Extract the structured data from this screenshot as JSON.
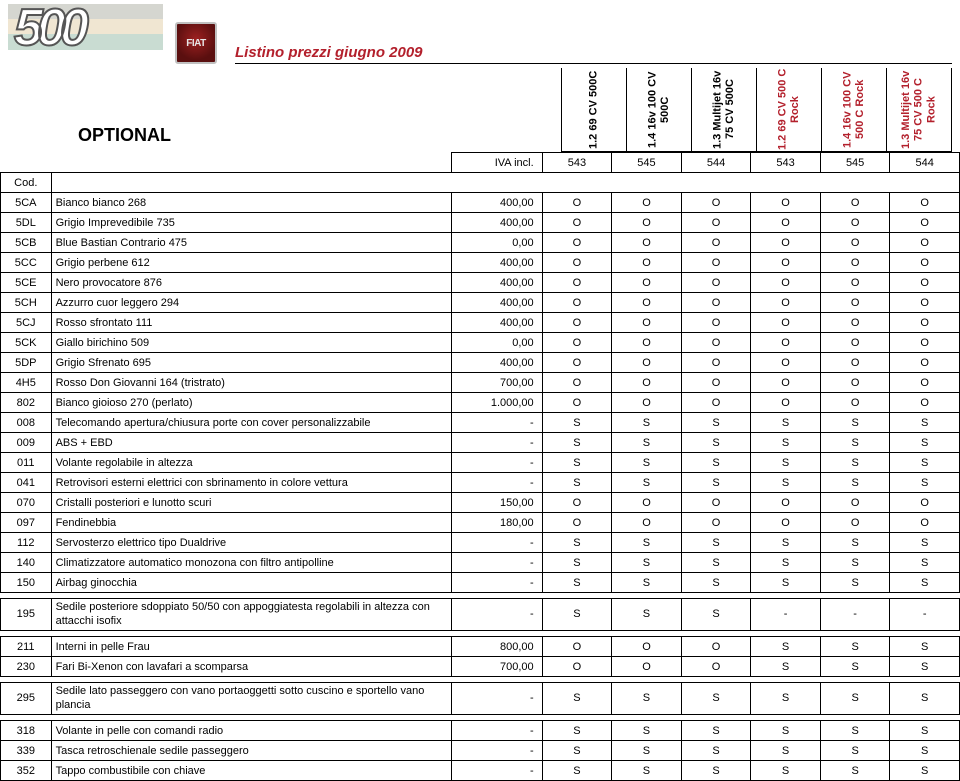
{
  "header": {
    "logo_text": "500",
    "brand_badge": "FIAT",
    "title": "Listino prezzi giugno 2009"
  },
  "section": {
    "label": "OPTIONAL",
    "iva_label": "IVA incl.",
    "cod_label": "Cod."
  },
  "variants": [
    {
      "name": "1.2 69 CV 500C",
      "code": "543",
      "rock": false
    },
    {
      "name": "1.4 16v 100 CV 500C",
      "code": "545",
      "rock": false
    },
    {
      "name": "1.3 Multijet 16v 75 CV 500C",
      "code": "544",
      "rock": false
    },
    {
      "name": "1.2 69 CV 500 C Rock",
      "code": "543",
      "rock": true
    },
    {
      "name": "1.4 16v 100 CV 500 C Rock",
      "code": "545",
      "rock": true
    },
    {
      "name": "1.3 Multijet 16v 75 CV 500 C Rock",
      "code": "544",
      "rock": true
    }
  ],
  "rows": [
    {
      "code": "5CA",
      "desc": "Bianco bianco 268",
      "price": "400,00",
      "v": [
        "O",
        "O",
        "O",
        "O",
        "O",
        "O"
      ]
    },
    {
      "code": "5DL",
      "desc": "Grigio Imprevedibile  735",
      "price": "400,00",
      "v": [
        "O",
        "O",
        "O",
        "O",
        "O",
        "O"
      ]
    },
    {
      "code": "5CB",
      "desc": "Blue Bastian Contrario 475",
      "price": "0,00",
      "v": [
        "O",
        "O",
        "O",
        "O",
        "O",
        "O"
      ]
    },
    {
      "code": "5CC",
      "desc": "Grigio perbene 612",
      "price": "400,00",
      "v": [
        "O",
        "O",
        "O",
        "O",
        "O",
        "O"
      ]
    },
    {
      "code": "5CE",
      "desc": "Nero provocatore 876",
      "price": "400,00",
      "v": [
        "O",
        "O",
        "O",
        "O",
        "O",
        "O"
      ]
    },
    {
      "code": "5CH",
      "desc": "Azzurro cuor leggero 294",
      "price": "400,00",
      "v": [
        "O",
        "O",
        "O",
        "O",
        "O",
        "O"
      ]
    },
    {
      "code": "5CJ",
      "desc": "Rosso sfrontato 111",
      "price": "400,00",
      "v": [
        "O",
        "O",
        "O",
        "O",
        "O",
        "O"
      ]
    },
    {
      "code": "5CK",
      "desc": "Giallo birichino 509",
      "price": "0,00",
      "v": [
        "O",
        "O",
        "O",
        "O",
        "O",
        "O"
      ]
    },
    {
      "code": "5DP",
      "desc": "Grigio Sfrenato 695",
      "price": "400,00",
      "v": [
        "O",
        "O",
        "O",
        "O",
        "O",
        "O"
      ]
    },
    {
      "code": "4H5",
      "desc": "Rosso Don Giovanni 164 (tristrato)",
      "price": "700,00",
      "v": [
        "O",
        "O",
        "O",
        "O",
        "O",
        "O"
      ]
    },
    {
      "code": "802",
      "desc": "Bianco gioioso 270 (perlato)",
      "price": "1.000,00",
      "v": [
        "O",
        "O",
        "O",
        "O",
        "O",
        "O"
      ]
    },
    {
      "code": "008",
      "desc": "Telecomando apertura/chiusura porte con cover personalizzabile",
      "price": "-",
      "v": [
        "S",
        "S",
        "S",
        "S",
        "S",
        "S"
      ]
    },
    {
      "code": "009",
      "desc": "ABS + EBD",
      "price": "-",
      "v": [
        "S",
        "S",
        "S",
        "S",
        "S",
        "S"
      ]
    },
    {
      "code": "011",
      "desc": "Volante regolabile in altezza",
      "price": "-",
      "v": [
        "S",
        "S",
        "S",
        "S",
        "S",
        "S"
      ]
    },
    {
      "code": "041",
      "desc": "Retrovisori esterni elettrici con sbrinamento in colore vettura",
      "price": "-",
      "v": [
        "S",
        "S",
        "S",
        "S",
        "S",
        "S"
      ]
    },
    {
      "code": "070",
      "desc": "Cristalli posteriori e lunotto scuri",
      "price": "150,00",
      "v": [
        "O",
        "O",
        "O",
        "O",
        "O",
        "O"
      ]
    },
    {
      "code": "097",
      "desc": "Fendinebbia",
      "price": "180,00",
      "v": [
        "O",
        "O",
        "O",
        "O",
        "O",
        "O"
      ]
    },
    {
      "code": "112",
      "desc": "Servosterzo elettrico tipo Dualdrive",
      "price": "-",
      "v": [
        "S",
        "S",
        "S",
        "S",
        "S",
        "S"
      ]
    },
    {
      "code": "140",
      "desc": "Climatizzatore automatico monozona con filtro antipolline",
      "price": "-",
      "v": [
        "S",
        "S",
        "S",
        "S",
        "S",
        "S"
      ]
    },
    {
      "code": "150",
      "desc": "Airbag ginocchia",
      "price": "-",
      "v": [
        "S",
        "S",
        "S",
        "S",
        "S",
        "S"
      ]
    },
    {
      "spacer": true
    },
    {
      "code": "195",
      "desc": "Sedile posteriore sdoppiato 50/50 con appoggiatesta regolabili in altezza con attacchi isofix",
      "price": "-",
      "v": [
        "S",
        "S",
        "S",
        "-",
        "-",
        "-"
      ],
      "tall": true
    },
    {
      "spacer": true
    },
    {
      "code": "211",
      "desc": "Interni in pelle Frau",
      "price": "800,00",
      "v": [
        "O",
        "O",
        "O",
        "S",
        "S",
        "S"
      ]
    },
    {
      "code": "230",
      "desc": "Fari Bi-Xenon con lavafari a scomparsa",
      "price": "700,00",
      "v": [
        "O",
        "O",
        "O",
        "S",
        "S",
        "S"
      ]
    },
    {
      "spacer": true
    },
    {
      "code": "295",
      "desc": "Sedile lato passeggero con vano portaoggetti sotto cuscino e sportello vano plancia",
      "price": "-",
      "v": [
        "S",
        "S",
        "S",
        "S",
        "S",
        "S"
      ],
      "tall": true
    },
    {
      "spacer": true
    },
    {
      "code": "318",
      "desc": "Volante in pelle con comandi radio",
      "price": "-",
      "v": [
        "S",
        "S",
        "S",
        "S",
        "S",
        "S"
      ]
    },
    {
      "code": "339",
      "desc": "Tasca retroschienale sedile passeggero",
      "price": "-",
      "v": [
        "S",
        "S",
        "S",
        "S",
        "S",
        "S"
      ]
    },
    {
      "code": "352",
      "desc": "Tappo combustibile con chiave",
      "price": "-",
      "v": [
        "S",
        "S",
        "S",
        "S",
        "S",
        "S"
      ]
    }
  ],
  "colors": {
    "accent": "#b3202c",
    "border": "#000000",
    "background": "#ffffff"
  }
}
